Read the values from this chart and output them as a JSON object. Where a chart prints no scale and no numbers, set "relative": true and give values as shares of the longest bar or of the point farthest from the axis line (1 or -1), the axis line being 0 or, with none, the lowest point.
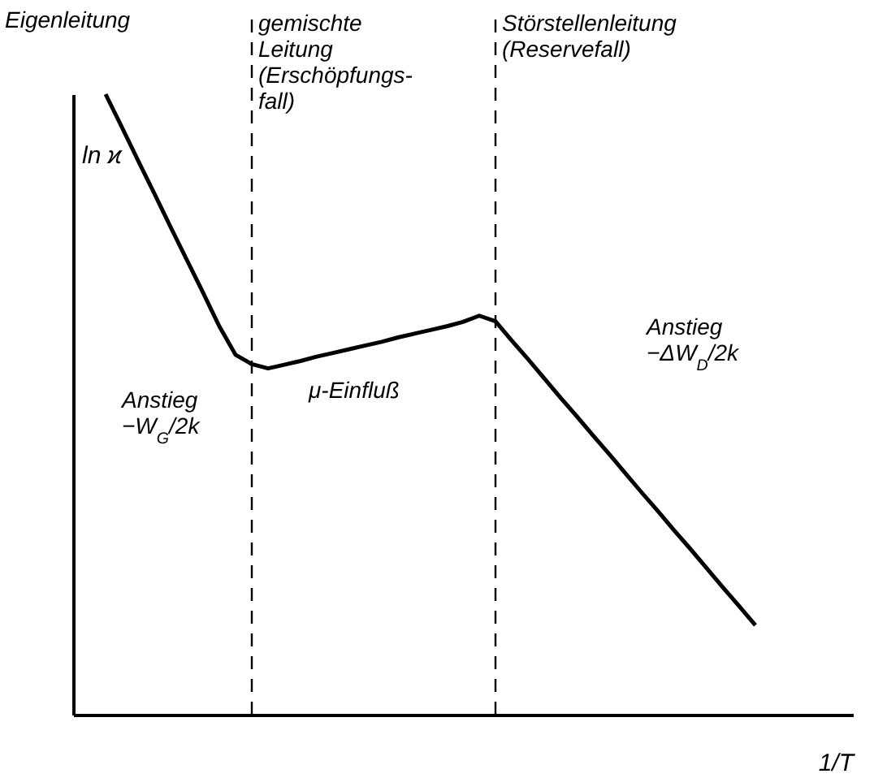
{
  "chart_data": {
    "type": "line",
    "relative": true,
    "xlabel": "1/T",
    "ylabel": "ln ϰ",
    "categories": [
      null,
      null,
      null,
      null,
      null,
      null,
      null,
      null,
      null,
      null,
      null,
      null,
      null,
      null,
      null,
      null,
      null,
      null,
      null,
      null,
      null,
      null,
      null,
      null,
      null,
      null,
      null,
      null,
      null,
      null,
      null,
      null,
      null,
      null,
      null,
      null,
      null,
      null,
      null,
      null,
      null,
      null,
      null,
      null,
      null,
      null,
      null,
      null,
      null
    ],
    "series": [
      {
        "color": "#000000",
        "values": [
          null,
          null,
          1.0,
          0.947,
          0.893,
          0.84,
          0.786,
          0.733,
          0.68,
          0.626,
          0.58,
          0.565,
          0.558,
          0.564,
          0.57,
          0.577,
          0.583,
          0.589,
          0.595,
          0.601,
          0.608,
          0.614,
          0.62,
          0.626,
          0.633,
          0.643,
          0.634,
          0.603,
          0.573,
          0.542,
          0.511,
          0.481,
          0.45,
          0.42,
          0.389,
          0.358,
          0.328,
          0.297,
          0.267,
          0.236,
          0.205,
          0.175,
          0.144,
          null,
          null,
          null,
          null,
          null,
          null
        ]
      }
    ],
    "annotations": [
      "Eigenleitung",
      "gemischte\nLeitung\n(Erschöpfungs-\nfall)",
      "Störstellenleitung\n(Reservefall)",
      "Anstieg\n−W$_{G}$/2k",
      "μ-Einfluß",
      "Anstieg\n−ΔW$_{D}$/2k"
    ]
  }
}
